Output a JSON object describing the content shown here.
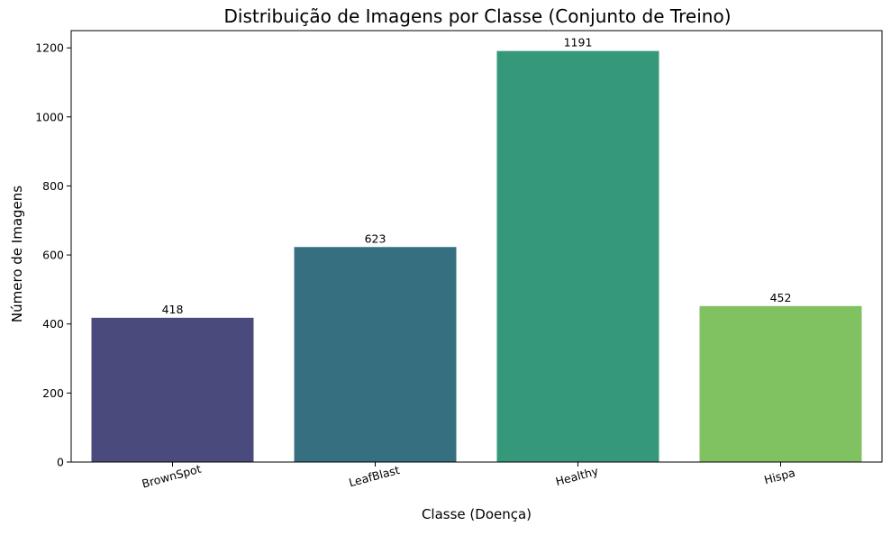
{
  "chart_data": {
    "type": "bar",
    "title": "Distribuição de Imagens por Classe (Conjunto de Treino)",
    "xlabel": "Classe (Doença)",
    "ylabel": "Número de Imagens",
    "categories": [
      "BrownSpot",
      "LeafBlast",
      "Healthy",
      "Hispa"
    ],
    "values": [
      418,
      623,
      1191,
      452
    ],
    "data_labels": [
      "418",
      "623",
      "1191",
      "452"
    ],
    "colors": [
      "#4a4b7c",
      "#366f80",
      "#35987b",
      "#80c261"
    ],
    "ylim": [
      0,
      1250
    ],
    "yticks": [
      0,
      200,
      400,
      600,
      800,
      1000,
      1200
    ],
    "ytick_labels": [
      "0",
      "200",
      "400",
      "600",
      "800",
      "1000",
      "1200"
    ],
    "xtick_rotation_deg": 15,
    "grid": false,
    "legend": "none"
  }
}
